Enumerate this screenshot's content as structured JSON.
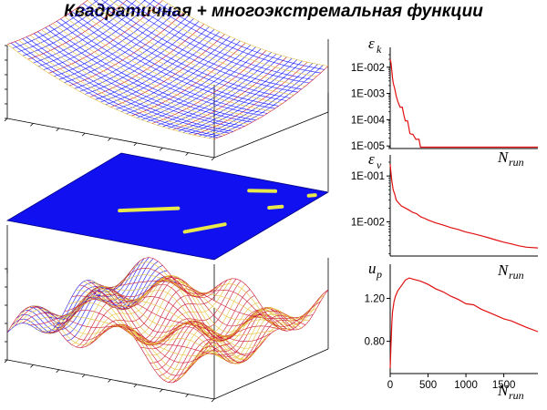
{
  "title": "Квадратичная + многоэкстремальная функции",
  "colors": {
    "mesh_blue": "#1a1aff",
    "mesh_red": "#cc1a33",
    "mesh_yellow": "#e6c23a",
    "plane_blue": "#1010f0",
    "path_yellow": "#e8e84a",
    "curve_red": "#e01010",
    "axis": "#000000"
  },
  "surfaces": [
    {
      "name": "quadratic-surface",
      "type": "surface"
    },
    {
      "name": "projection-plane",
      "type": "plane",
      "paths": [
        {
          "name": "search-path-1"
        },
        {
          "name": "search-path-2"
        },
        {
          "name": "search-path-3"
        },
        {
          "name": "search-path-4"
        },
        {
          "name": "search-path-5"
        }
      ]
    },
    {
      "name": "multiextremal-surface",
      "type": "surface"
    }
  ],
  "chart_data": [
    {
      "type": "line",
      "ylabel": "ε",
      "ylabel_sub": "k",
      "xlabel": "N",
      "xlabel_sub": "run",
      "yscale": "log",
      "xlim": [
        0,
        1950
      ],
      "ylim": [
        8e-06,
        0.03
      ],
      "yticks": [
        {
          "value": 0.01,
          "label": "1E-002"
        },
        {
          "value": 0.001,
          "label": "1E-003"
        },
        {
          "value": 0.0001,
          "label": "1E-004"
        },
        {
          "value": 1e-05,
          "label": "1E-005"
        }
      ],
      "x": [
        0,
        10,
        20,
        30,
        40,
        60,
        80,
        100,
        130,
        160,
        180,
        200,
        230,
        260,
        280,
        300,
        340,
        380,
        400,
        1950
      ],
      "y": [
        0.02,
        0.015,
        0.008,
        0.004,
        0.0025,
        0.0015,
        0.0008,
        0.0005,
        0.0003,
        0.0003,
        0.00015,
        9e-05,
        9e-05,
        3e-05,
        2.8e-05,
        2.8e-05,
        1.8e-05,
        1.8e-05,
        9e-06,
        9e-06
      ]
    },
    {
      "type": "line",
      "ylabel": "ε",
      "ylabel_sub": "ν",
      "xlabel": "N",
      "xlabel_sub": "run",
      "yscale": "log",
      "xlim": [
        0,
        1950
      ],
      "ylim": [
        0.0018,
        0.2
      ],
      "yticks": [
        {
          "value": 0.1,
          "label": "1E-001"
        },
        {
          "value": 0.01,
          "label": "1E-002"
        }
      ],
      "x": [
        0,
        10,
        20,
        40,
        60,
        80,
        100,
        150,
        200,
        250,
        300,
        350,
        400,
        450,
        500,
        600,
        700,
        800,
        900,
        1000,
        1100,
        1200,
        1300,
        1400,
        1500,
        1600,
        1700,
        1800,
        1950
      ],
      "y": [
        0.18,
        0.12,
        0.08,
        0.05,
        0.04,
        0.03,
        0.027,
        0.022,
        0.02,
        0.018,
        0.016,
        0.015,
        0.013,
        0.012,
        0.011,
        0.0095,
        0.0085,
        0.0075,
        0.0068,
        0.006,
        0.0055,
        0.005,
        0.0045,
        0.004,
        0.0036,
        0.0033,
        0.003,
        0.0028,
        0.0027
      ]
    },
    {
      "type": "line",
      "ylabel": "u",
      "ylabel_sub": "p",
      "xlabel": "N",
      "xlabel_sub": "run",
      "yscale": "linear",
      "xlim": [
        0,
        1950
      ],
      "ylim": [
        0.5,
        1.45
      ],
      "xticks": [
        0,
        500,
        1000,
        1500
      ],
      "yticks": [
        {
          "value": 1.2,
          "label": "1.20"
        },
        {
          "value": 0.8,
          "label": "0.80"
        }
      ],
      "x": [
        0,
        10,
        20,
        30,
        50,
        70,
        100,
        150,
        200,
        250,
        300,
        350,
        400,
        500,
        600,
        700,
        800,
        900,
        1000,
        1100,
        1200,
        1300,
        1400,
        1500,
        1600,
        1700,
        1800,
        1950
      ],
      "y": [
        0.55,
        0.75,
        0.95,
        1.07,
        1.17,
        1.22,
        1.27,
        1.32,
        1.37,
        1.39,
        1.38,
        1.37,
        1.36,
        1.33,
        1.29,
        1.26,
        1.22,
        1.19,
        1.15,
        1.14,
        1.1,
        1.07,
        1.04,
        1.01,
        0.99,
        0.96,
        0.93,
        0.89
      ]
    }
  ]
}
